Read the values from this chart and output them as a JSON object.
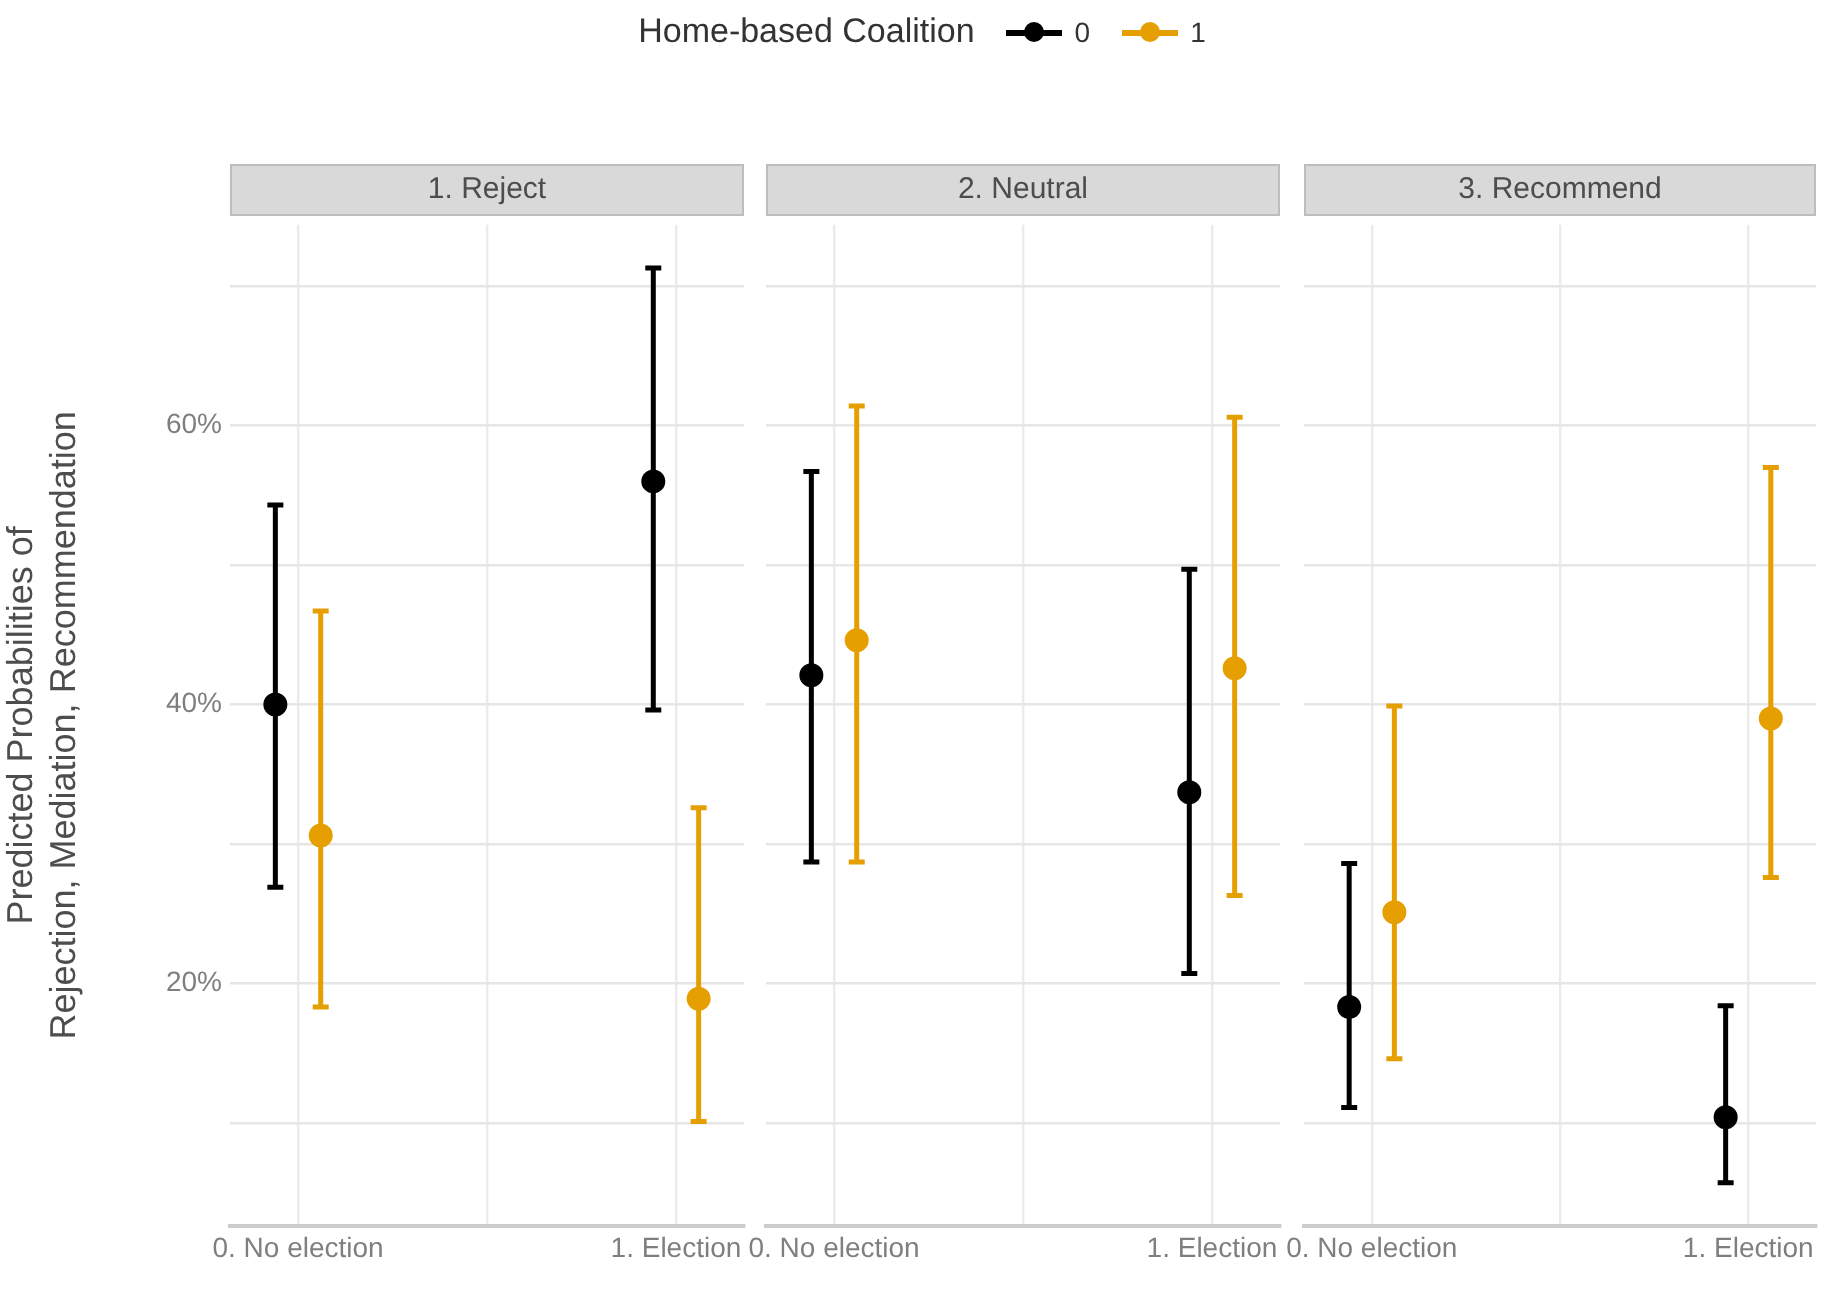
{
  "chart_data": [
    {
      "type": "scatter",
      "title": "1. Reject",
      "ylabel": "Predicted Probabilities of\nRejection, Mediation, Recommendation",
      "legend_title": "Home-based Coalition",
      "legend": "top",
      "grid": true,
      "marker": "circle",
      "categories": [
        "0. No election",
        "1. Election"
      ],
      "ylim": [
        2.6,
        74.4
      ],
      "yticks": [
        {
          "value": 10,
          "label": null
        },
        {
          "value": 20,
          "label": "20%"
        },
        {
          "value": 30,
          "label": null
        },
        {
          "value": 40,
          "label": "40%"
        },
        {
          "value": 50,
          "label": null
        },
        {
          "value": 60,
          "label": "60%"
        },
        {
          "value": 70,
          "label": null
        }
      ],
      "series": [
        {
          "name": "0",
          "color": "#000000",
          "values": [
            40,
            56
          ],
          "errors": [
            [
              26.9,
              54.3
            ],
            [
              39.6,
              71.3
            ]
          ]
        },
        {
          "name": "1",
          "color": "#e69f00",
          "values": [
            30.6,
            18.9
          ],
          "errors": [
            [
              18.3,
              46.7
            ],
            [
              10.1,
              32.6
            ]
          ]
        }
      ]
    },
    {
      "type": "scatter",
      "title": "2. Neutral",
      "grid": true,
      "marker": "circle",
      "tick_labels": "x",
      "categories": [
        "0. No election",
        "1. Election"
      ],
      "ylim": [
        2.6,
        74.4
      ],
      "yticks": [
        {
          "value": 10,
          "label": null
        },
        {
          "value": 20,
          "label": null
        },
        {
          "value": 30,
          "label": null
        },
        {
          "value": 40,
          "label": null
        },
        {
          "value": 50,
          "label": null
        },
        {
          "value": 60,
          "label": null
        },
        {
          "value": 70,
          "label": null
        }
      ],
      "series": [
        {
          "color": "#000000",
          "values": [
            42.1,
            33.7
          ],
          "errors": [
            [
              28.7,
              56.7
            ],
            [
              20.7,
              49.7
            ]
          ]
        },
        {
          "color": "#e69f00",
          "values": [
            44.6,
            42.6
          ],
          "errors": [
            [
              28.7,
              61.4
            ],
            [
              26.3,
              60.6
            ]
          ]
        }
      ]
    },
    {
      "type": "scatter",
      "title": "3. Recommend",
      "grid": true,
      "marker": "circle",
      "tick_labels": "x",
      "categories": [
        "0. No election",
        "1. Election"
      ],
      "ylim": [
        2.6,
        74.4
      ],
      "yticks": [
        {
          "value": 10,
          "label": null
        },
        {
          "value": 20,
          "label": null
        },
        {
          "value": 30,
          "label": null
        },
        {
          "value": 40,
          "label": null
        },
        {
          "value": 50,
          "label": null
        },
        {
          "value": 60,
          "label": null
        },
        {
          "value": 70,
          "label": null
        }
      ],
      "series": [
        {
          "color": "#000000",
          "values": [
            18.3,
            10.4
          ],
          "errors": [
            [
              11.1,
              28.6
            ],
            [
              5.7,
              18.4
            ]
          ]
        },
        {
          "color": "#e69f00",
          "values": [
            25.1,
            39
          ],
          "errors": [
            [
              14.6,
              39.9
            ],
            [
              27.6,
              57
            ]
          ]
        }
      ]
    }
  ]
}
